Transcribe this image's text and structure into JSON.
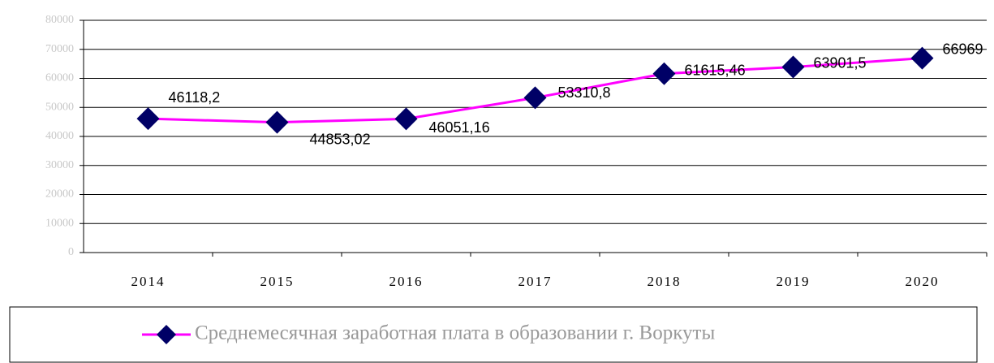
{
  "chart_data": {
    "type": "line",
    "categories": [
      "2014",
      "2015",
      "2016",
      "2017",
      "2018",
      "2019",
      "2020"
    ],
    "series": [
      {
        "name": "Среднемесячная заработная плата в образовании г. Воркуты",
        "color": "#ff00ff",
        "marker_color": "#000066",
        "values": [
          46118.2,
          44853.02,
          46051.16,
          53310.8,
          61615.46,
          63901.5,
          66969
        ],
        "value_labels": [
          "46118,2",
          "44853,02",
          "46051,16",
          "53310,8",
          "61615,46",
          "63901,5",
          "66969"
        ]
      }
    ],
    "ylim": [
      0,
      80000
    ],
    "yticks": [
      0,
      10000,
      20000,
      30000,
      40000,
      50000,
      60000,
      70000,
      80000
    ],
    "grid": true,
    "legend": "bottom"
  }
}
